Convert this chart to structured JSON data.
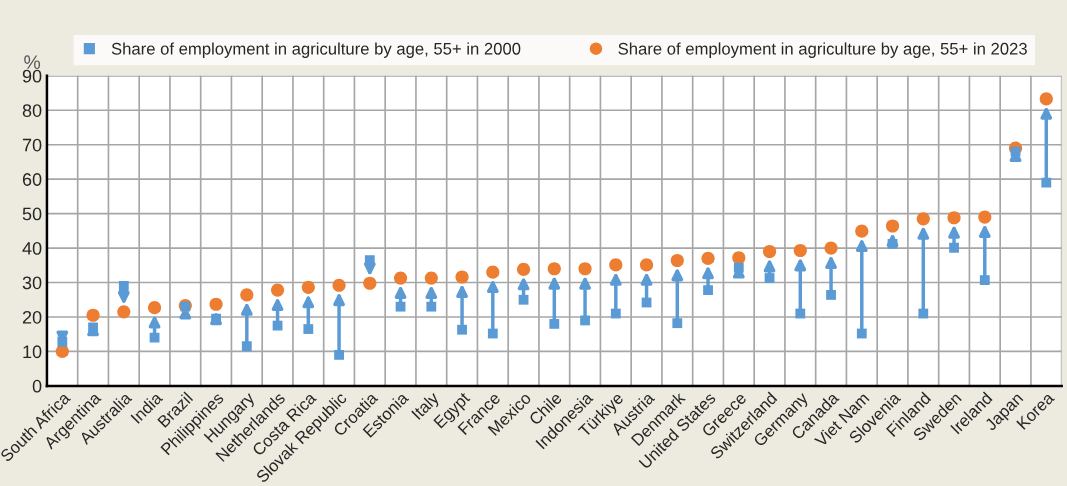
{
  "chart_data": {
    "type": "scatter",
    "ylabel": "%",
    "categories": [
      "South Africa",
      "Argentina",
      "Australia",
      "India",
      "Brazil",
      "Philippines",
      "Hungary",
      "Netherlands",
      "Costa Rica",
      "Slovak Republic",
      "Croatia",
      "Estonia",
      "Italy",
      "Egypt",
      "France",
      "Mexico",
      "Chile",
      "Indonesia",
      "Türkiye",
      "Austria",
      "Denmark",
      "United States",
      "Greece",
      "Switzerland",
      "Germany",
      "Canada",
      "Viet Nam",
      "Slovenia",
      "Finland",
      "Sweden",
      "Ireland",
      "Japan",
      "Korea"
    ],
    "series": [
      {
        "name": "Share of employment in agriculture by age, 55+ in 2000",
        "color": "#5b9bd5",
        "marker": "square",
        "values": [
          12.8,
          17,
          29,
          14,
          23,
          19.5,
          11.5,
          17.5,
          16.5,
          9,
          36.5,
          23,
          23,
          16.3,
          15.2,
          25,
          18,
          19,
          21,
          24.2,
          18.2,
          27.8,
          34.3,
          31.3,
          21,
          26.4,
          15.2,
          41.2,
          21,
          40.1,
          30.7,
          68,
          59
        ]
      },
      {
        "name": "Share of employment in agriculture by age, 55+ in 2023",
        "color": "#ed7d31",
        "marker": "circle",
        "values": [
          10,
          20.5,
          21.5,
          22.7,
          23.3,
          23.7,
          26.4,
          27.8,
          28.6,
          29.2,
          29.8,
          31.3,
          31.3,
          31.6,
          33,
          33.8,
          34,
          34,
          35.1,
          35.1,
          36.4,
          37,
          37.2,
          39,
          39.3,
          40,
          44.9,
          46.4,
          48.5,
          48.8,
          49,
          69,
          83.3
        ]
      }
    ],
    "ylim": [
      0,
      90
    ],
    "yticks": [
      0,
      10,
      20,
      30,
      40,
      50,
      60,
      70,
      80,
      90
    ],
    "grid": true,
    "legend": "top"
  }
}
